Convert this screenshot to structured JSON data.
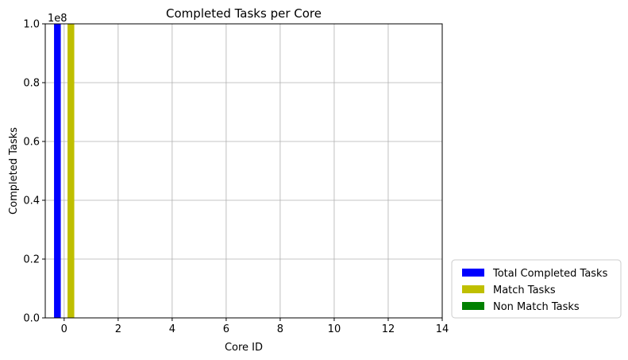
{
  "chart_data": {
    "type": "bar",
    "title": "Completed Tasks per Core",
    "xlabel": "Core ID",
    "ylabel": "Completed Tasks",
    "y_offset_text": "1e8",
    "xlim": [
      -0.7,
      14.0
    ],
    "ylim": [
      0,
      1.0
    ],
    "x_ticks": [
      0,
      2,
      4,
      6,
      8,
      10,
      12,
      14
    ],
    "x_tick_labels": [
      "0",
      "2",
      "4",
      "6",
      "8",
      "10",
      "12",
      "14"
    ],
    "y_ticks": [
      0.0,
      0.2,
      0.4,
      0.6,
      0.8,
      1.0
    ],
    "y_tick_labels": [
      "0.0",
      "0.2",
      "0.4",
      "0.6",
      "0.8",
      "1.0"
    ],
    "grid": true,
    "legend_position": "outside-lower-right",
    "categories": [
      0
    ],
    "series": [
      {
        "name": "Total Completed Tasks",
        "color": "#0000ff",
        "values": [
          1.0
        ],
        "offset": -0.25
      },
      {
        "name": "Match Tasks",
        "color": "#bfbf00",
        "values": [
          1.0
        ],
        "offset": 0.25
      },
      {
        "name": "Non Match Tasks",
        "color": "#008000",
        "values": [
          0.0
        ],
        "offset": 0.0
      }
    ]
  }
}
